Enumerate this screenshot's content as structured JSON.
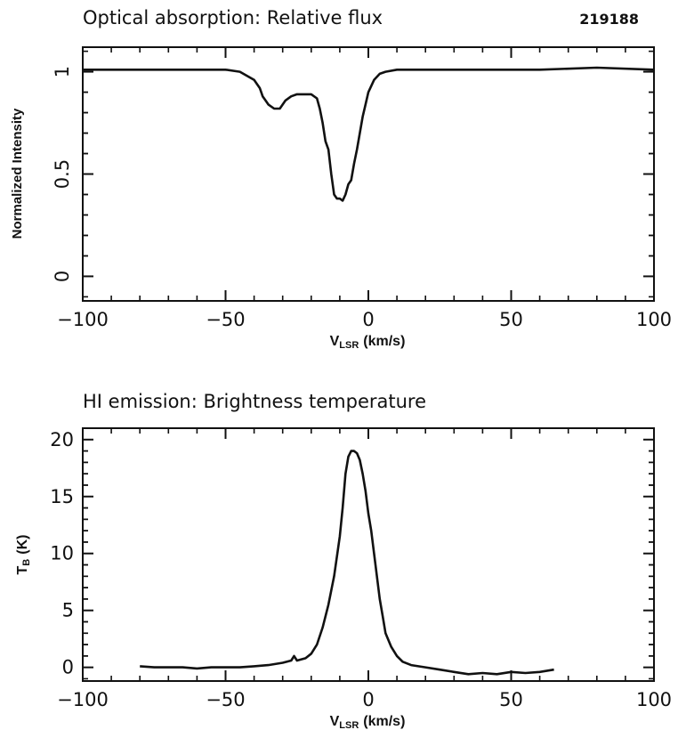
{
  "chart_data": [
    {
      "type": "line",
      "title": "Optical absorption: Relative flux",
      "id_label": "219188",
      "ylabel": "Normalized Intensity",
      "xlabel_main": "V",
      "xlabel_sub": "LSR",
      "xlabel_unit": "(km/s)",
      "xlim": [
        -100,
        100
      ],
      "ylim": [
        -0.12,
        1.12
      ],
      "xticks": [
        -100,
        -50,
        0,
        50,
        100
      ],
      "xtick_labels": [
        "−100",
        "−50",
        "0",
        "50",
        "100"
      ],
      "yticks": [
        0,
        0.5,
        1
      ],
      "ytick_labels": [
        "0",
        "0.5",
        "1"
      ],
      "grid": false,
      "x": [
        -100,
        -80,
        -60,
        -50,
        -45,
        -40,
        -38,
        -37,
        -36,
        -35,
        -33,
        -31,
        -30,
        -29,
        -27,
        -25,
        -20,
        -18,
        -17,
        -16,
        -15,
        -14,
        -13,
        -12,
        -11,
        -10,
        -9,
        -8,
        -7,
        -6,
        -5,
        -4,
        -3,
        -2,
        -1,
        0,
        1,
        2,
        4,
        6,
        10,
        20,
        40,
        60,
        80,
        100
      ],
      "y": [
        1.01,
        1.01,
        1.01,
        1.01,
        1.0,
        0.96,
        0.92,
        0.88,
        0.86,
        0.84,
        0.82,
        0.82,
        0.84,
        0.86,
        0.88,
        0.89,
        0.89,
        0.87,
        0.82,
        0.75,
        0.66,
        0.62,
        0.5,
        0.4,
        0.38,
        0.38,
        0.37,
        0.4,
        0.45,
        0.47,
        0.55,
        0.62,
        0.7,
        0.78,
        0.84,
        0.9,
        0.93,
        0.96,
        0.99,
        1.0,
        1.01,
        1.01,
        1.01,
        1.01,
        1.02,
        1.01
      ]
    },
    {
      "type": "line",
      "title": "HI emission: Brightness temperature",
      "ylabel_main": "T",
      "ylabel_sub": "B",
      "ylabel_unit": "(K)",
      "xlabel_main": "V",
      "xlabel_sub": "LSR",
      "xlabel_unit": "(km/s)",
      "xlim": [
        -100,
        100
      ],
      "ylim": [
        -1.2,
        21
      ],
      "xticks": [
        -100,
        -50,
        0,
        50,
        100
      ],
      "xtick_labels": [
        "−100",
        "−50",
        "0",
        "50",
        "100"
      ],
      "yticks": [
        0,
        5,
        10,
        15,
        20
      ],
      "ytick_labels": [
        "0",
        "5",
        "10",
        "15",
        "20"
      ],
      "grid": false,
      "x": [
        -80,
        -75,
        -70,
        -65,
        -60,
        -55,
        -50,
        -45,
        -40,
        -35,
        -30,
        -27,
        -26,
        -25,
        -22,
        -20,
        -18,
        -16,
        -14,
        -12,
        -10,
        -9,
        -8,
        -7,
        -6,
        -5,
        -4,
        -3,
        -2,
        -1,
        0,
        1,
        2,
        3,
        4,
        5,
        6,
        8,
        10,
        12,
        15,
        20,
        25,
        30,
        35,
        40,
        45,
        50,
        55,
        60,
        65
      ],
      "y": [
        0.1,
        0.0,
        0.0,
        0.0,
        -0.1,
        0.0,
        0.0,
        0.0,
        0.1,
        0.2,
        0.4,
        0.6,
        1.0,
        0.6,
        0.8,
        1.2,
        2.0,
        3.5,
        5.5,
        8.0,
        11.5,
        14.0,
        17.0,
        18.5,
        19.0,
        19.0,
        18.8,
        18.2,
        17.0,
        15.5,
        13.5,
        12.0,
        10.0,
        8.0,
        6.0,
        4.5,
        3.0,
        1.8,
        1.0,
        0.5,
        0.2,
        0.0,
        -0.2,
        -0.4,
        -0.6,
        -0.5,
        -0.6,
        -0.4,
        -0.5,
        -0.4,
        -0.2
      ]
    }
  ]
}
